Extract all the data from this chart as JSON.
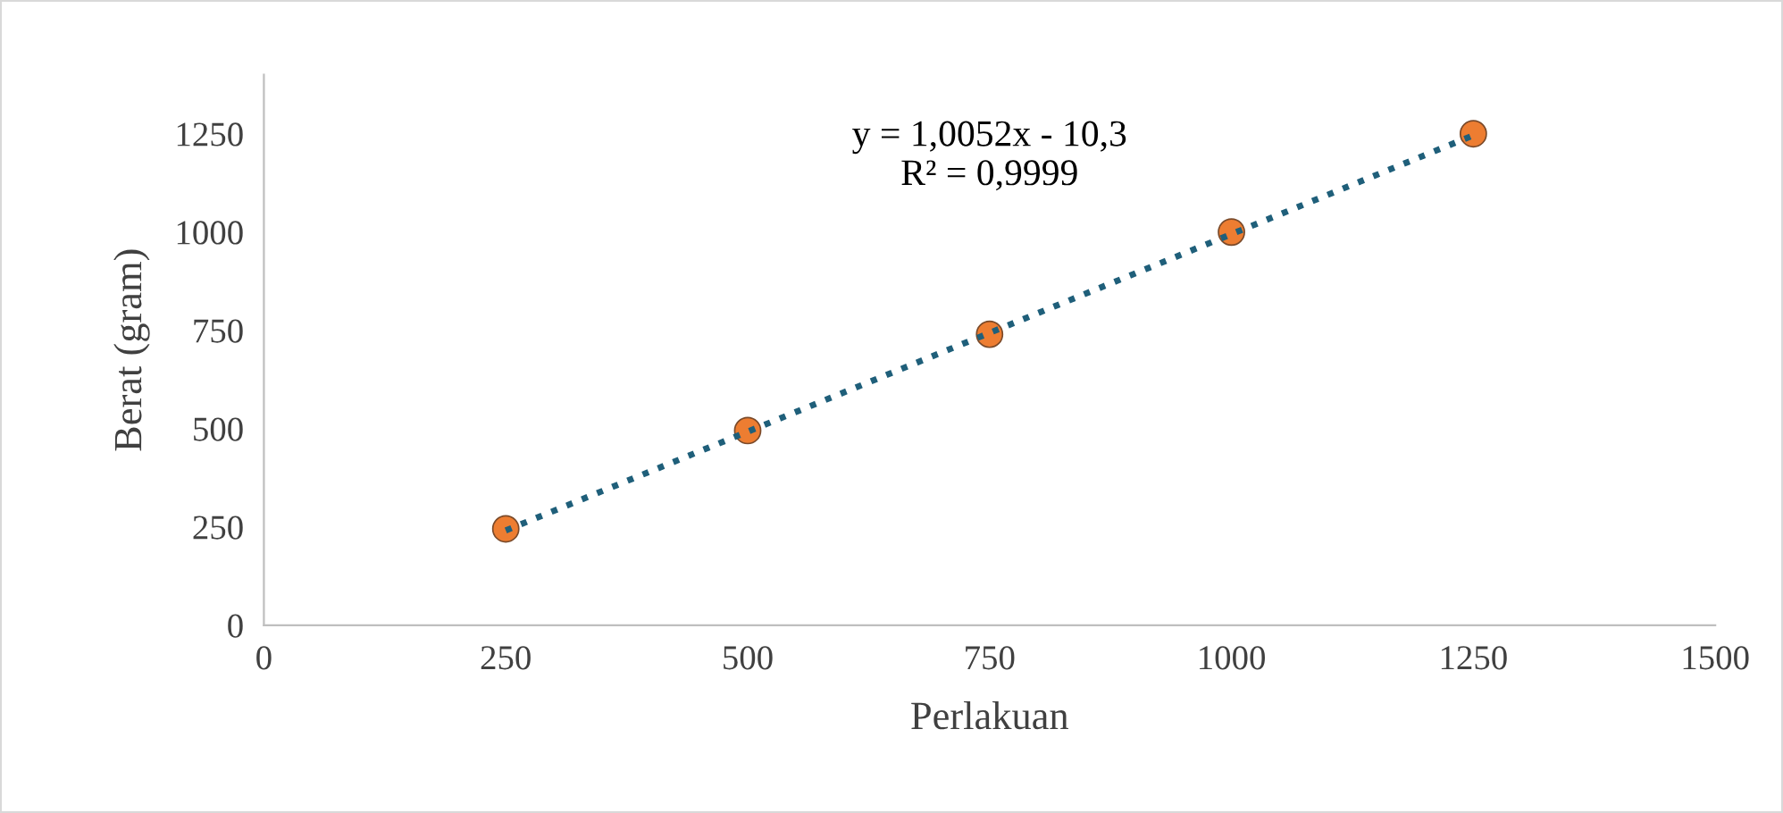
{
  "chart_data": {
    "type": "scatter",
    "xlabel": "Perlakuan",
    "ylabel": "Berat (gram)",
    "x": [
      250,
      500,
      750,
      1000,
      1250
    ],
    "series": [
      {
        "type": "scatter",
        "color": "#ed7d31",
        "values": [
          245,
          495,
          740,
          1000,
          1250
        ],
        "marker": "circle"
      },
      {
        "type": "line",
        "color": "#1f5f7a",
        "x": [
          250,
          1250
        ],
        "values": [
          241,
          1246
        ],
        "line_style": "dotted",
        "marker": "none"
      }
    ],
    "annotations": [
      "y = 1,0052x - 10,3\nR² = 0,9999"
    ],
    "xlim": [
      0,
      1500
    ],
    "ylim": [
      0,
      1400
    ],
    "xticks": [
      0,
      250,
      500,
      750,
      1000,
      1250,
      1500
    ],
    "yticks": [
      0,
      250,
      500,
      750,
      1000,
      1250
    ],
    "grid": false,
    "legend": false
  }
}
